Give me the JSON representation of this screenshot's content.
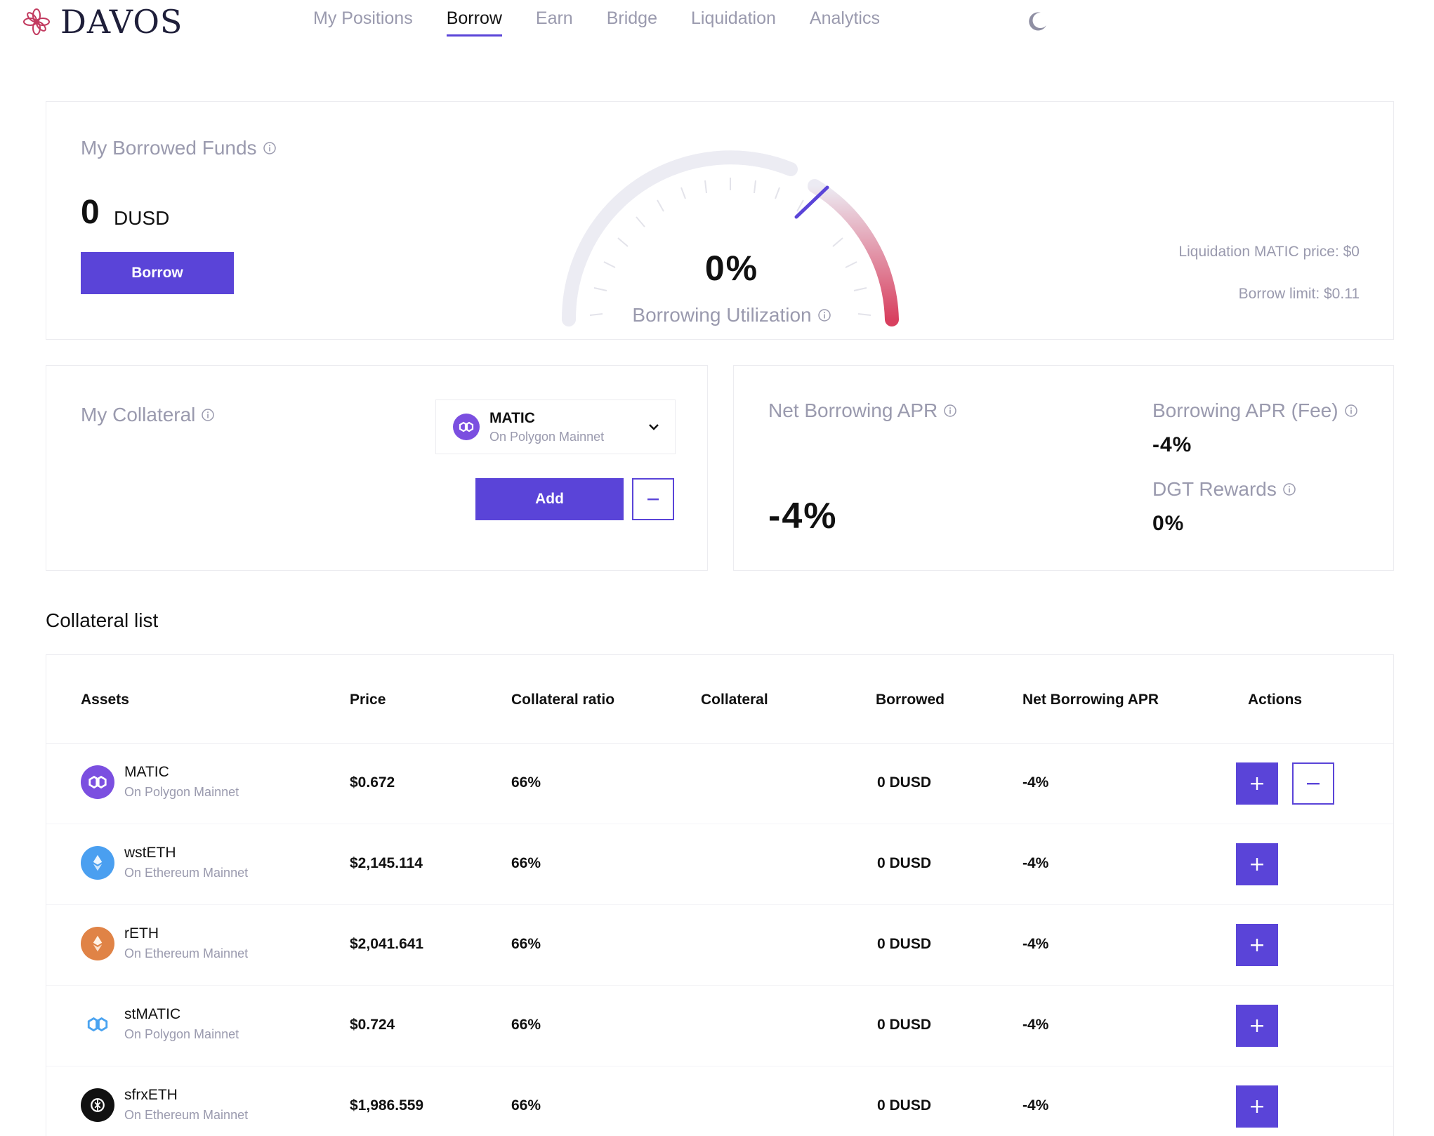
{
  "brand": {
    "name": "DAVOS"
  },
  "nav": {
    "items": [
      {
        "label": "My Positions",
        "active": false
      },
      {
        "label": "Borrow",
        "active": true
      },
      {
        "label": "Earn",
        "active": false
      },
      {
        "label": "Bridge",
        "active": false
      },
      {
        "label": "Liquidation",
        "active": false
      },
      {
        "label": "Analytics",
        "active": false
      }
    ],
    "theme_icon": "moon-icon"
  },
  "borrowed": {
    "title": "My Borrowed Funds",
    "amount": "0",
    "unit": "DUSD",
    "button": "Borrow"
  },
  "utilization": {
    "value": "0%",
    "label": "Borrowing Utilization",
    "liquidation_price": "Liquidation MATIC price: $0",
    "borrow_limit": "Borrow limit: $0.11"
  },
  "collateral": {
    "title": "My Collateral",
    "selected": {
      "name": "MATIC",
      "network": "On Polygon Mainnet"
    },
    "add_button": "Add",
    "minus_label": "−"
  },
  "apr": {
    "net_title": "Net Borrowing APR",
    "net_value": "-4%",
    "fee_title": "Borrowing APR (Fee)",
    "fee_value": "-4%",
    "rewards_title": "DGT Rewards",
    "rewards_value": "0%"
  },
  "list": {
    "title": "Collateral list",
    "headers": [
      "Assets",
      "Price",
      "Collateral ratio",
      "Collateral",
      "Borrowed",
      "Net Borrowing APR",
      "Actions"
    ],
    "rows": [
      {
        "name": "MATIC",
        "network": "On Polygon Mainnet",
        "price": "$0.672",
        "ratio": "66%",
        "collateral": "",
        "borrowed": "0 DUSD",
        "apr": "-4%",
        "icon": "matic-icon",
        "has_minus": true
      },
      {
        "name": "wstETH",
        "network": "On Ethereum Mainnet",
        "price": "$2,145.114",
        "ratio": "66%",
        "collateral": "",
        "borrowed": "0 DUSD",
        "apr": "-4%",
        "icon": "wsteth-icon",
        "has_minus": false
      },
      {
        "name": "rETH",
        "network": "On Ethereum Mainnet",
        "price": "$2,041.641",
        "ratio": "66%",
        "collateral": "",
        "borrowed": "0 DUSD",
        "apr": "-4%",
        "icon": "reth-icon",
        "has_minus": false
      },
      {
        "name": "stMATIC",
        "network": "On Polygon Mainnet",
        "price": "$0.724",
        "ratio": "66%",
        "collateral": "",
        "borrowed": "0 DUSD",
        "apr": "-4%",
        "icon": "stmatic-icon",
        "has_minus": false
      },
      {
        "name": "sfrxETH",
        "network": "On Ethereum Mainnet",
        "price": "$1,986.559",
        "ratio": "66%",
        "collateral": "",
        "borrowed": "0 DUSD",
        "apr": "-4%",
        "icon": "sfrxeth-icon",
        "has_minus": false
      }
    ]
  },
  "colors": {
    "accent": "#5a44d8",
    "muted": "#9a9aae",
    "gauge_end": "#d8405f"
  }
}
